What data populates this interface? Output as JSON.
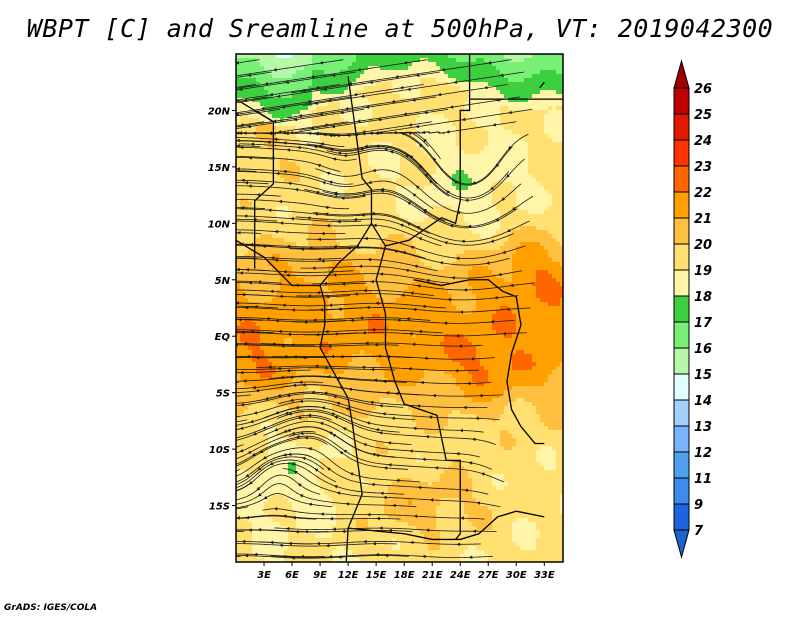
{
  "title": "WBPT [C] and Sreamline at 500hPa, VT: 2019042300",
  "footer": "GrADS: IGES/COLA",
  "map": {
    "variable": "WBPT [C]",
    "level": "500hPa",
    "valid_time": "2019042300",
    "lon_range": [
      0,
      35
    ],
    "lat_range": [
      -20,
      25
    ],
    "lat_ticks": [
      {
        "value": 20,
        "label": "20N"
      },
      {
        "value": 15,
        "label": "15N"
      },
      {
        "value": 10,
        "label": "10N"
      },
      {
        "value": 5,
        "label": "5N"
      },
      {
        "value": 0,
        "label": "EQ"
      },
      {
        "value": -5,
        "label": "5S"
      },
      {
        "value": -10,
        "label": "10S"
      },
      {
        "value": -15,
        "label": "15S"
      }
    ],
    "lon_ticks": [
      {
        "value": 3,
        "label": "3E"
      },
      {
        "value": 6,
        "label": "6E"
      },
      {
        "value": 9,
        "label": "9E"
      },
      {
        "value": 12,
        "label": "12E"
      },
      {
        "value": 15,
        "label": "15E"
      },
      {
        "value": 18,
        "label": "18E"
      },
      {
        "value": 21,
        "label": "21E"
      },
      {
        "value": 24,
        "label": "24E"
      },
      {
        "value": 27,
        "label": "27E"
      },
      {
        "value": 30,
        "label": "30E"
      },
      {
        "value": 33,
        "label": "33E"
      }
    ]
  },
  "colorbar": {
    "labels": [
      "26",
      "25",
      "24",
      "23",
      "22",
      "21",
      "20",
      "19",
      "18",
      "17",
      "16",
      "15",
      "14",
      "13",
      "12",
      "11",
      "9",
      "7"
    ],
    "levels": [
      26,
      25,
      24,
      23,
      22,
      21,
      20,
      19,
      18,
      17,
      16,
      15,
      14,
      13,
      12,
      11,
      9,
      7
    ],
    "top_arrow_color": "#a00000",
    "bottom_arrow_color": "#1e64d0",
    "colors": [
      "#c00000",
      "#e01a00",
      "#ff3300",
      "#ff6600",
      "#ffa000",
      "#ffc040",
      "#ffe070",
      "#fff5a8",
      "#3cd040",
      "#78f078",
      "#b4f8a8",
      "#e0ffff",
      "#a0d2ff",
      "#78b4ff",
      "#50a0f0",
      "#3c8cf0",
      "#1e64e0"
    ]
  }
}
